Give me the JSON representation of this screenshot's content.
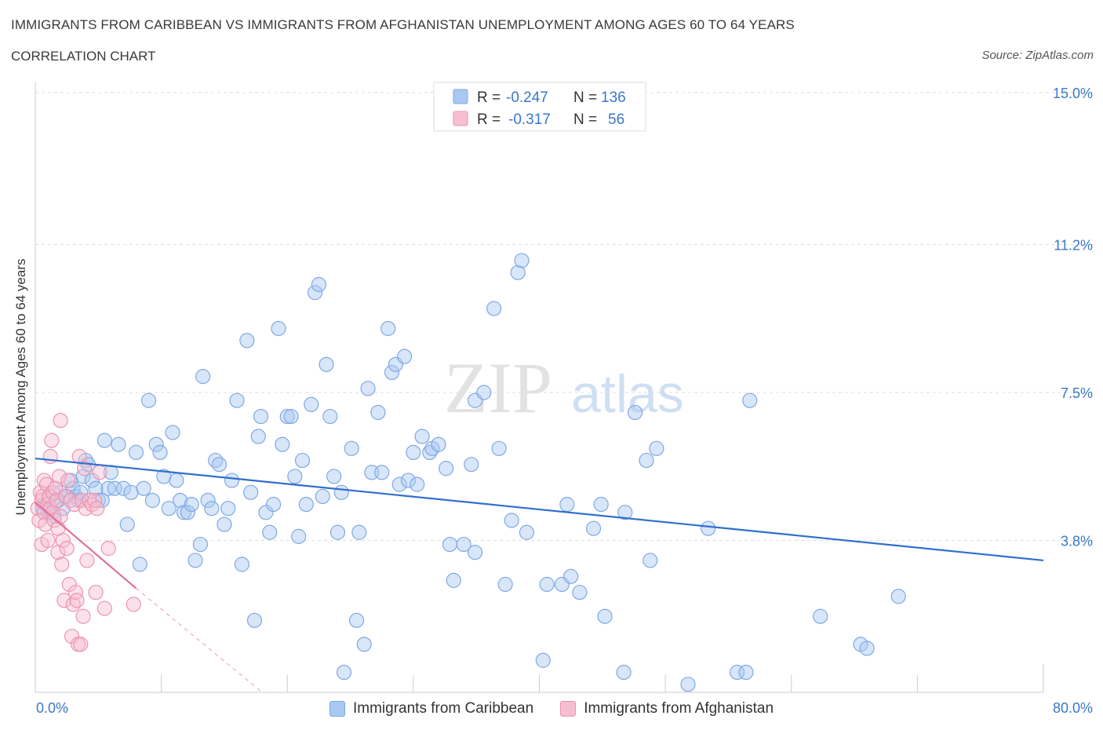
{
  "title": "IMMIGRANTS FROM CARIBBEAN VS IMMIGRANTS FROM AFGHANISTAN UNEMPLOYMENT AMONG AGES 60 TO 64 YEARS",
  "subtitle": "CORRELATION CHART",
  "source": "Source: ZipAtlas.com",
  "watermark": {
    "zip": "ZIP",
    "atlas": "atlas"
  },
  "colors": {
    "blue_fill": "#a9c8f2",
    "blue_stroke": "#7fa9e3",
    "blue_line": "#2f6fcd",
    "pink_fill": "#f6bfd1",
    "pink_stroke": "#ec93b1",
    "pink_line": "#e0709a",
    "value_text": "#3a78c9",
    "grid": "#dcdcdc"
  },
  "legend_stats": [
    {
      "r_label": "R =",
      "r_value": "-0.247",
      "n_label": "N =",
      "n_value": "136"
    },
    {
      "r_label": "R =",
      "r_value": "-0.317",
      "n_label": "N =",
      "n_value": "56"
    }
  ],
  "chart_data": {
    "type": "scatter",
    "title": "IMMIGRANTS FROM CARIBBEAN VS IMMIGRANTS FROM AFGHANISTAN UNEMPLOYMENT AMONG AGES 60 TO 64 YEARS",
    "xlabel": "",
    "ylabel": "Unemployment Among Ages 60 to 64 years",
    "xlim": [
      0,
      80
    ],
    "ylim": [
      0,
      15
    ],
    "x_tick_labels": [
      "0.0%",
      "80.0%"
    ],
    "y_ticks": [
      3.8,
      7.5,
      11.2,
      15.0
    ],
    "y_tick_labels": [
      "3.8%",
      "7.5%",
      "11.2%",
      "15.0%"
    ],
    "grid": true,
    "legend": "bottom",
    "series": [
      {
        "name": "Immigrants from Caribbean",
        "color": "#a9c8f2",
        "points": [
          [
            0.6,
            4.6
          ],
          [
            0.8,
            4.7
          ],
          [
            1.0,
            4.5
          ],
          [
            1.2,
            4.9
          ],
          [
            1.5,
            4.4
          ],
          [
            1.8,
            4.8
          ],
          [
            2.0,
            5.0
          ],
          [
            2.2,
            4.6
          ],
          [
            2.5,
            4.9
          ],
          [
            2.8,
            5.3
          ],
          [
            3.0,
            5.1
          ],
          [
            3.2,
            4.9
          ],
          [
            3.4,
            4.8
          ],
          [
            3.6,
            5.0
          ],
          [
            3.8,
            5.4
          ],
          [
            4.0,
            5.8
          ],
          [
            4.2,
            5.7
          ],
          [
            4.5,
            5.3
          ],
          [
            4.8,
            5.1
          ],
          [
            5.0,
            4.8
          ],
          [
            5.3,
            4.8
          ],
          [
            5.5,
            6.3
          ],
          [
            5.8,
            5.1
          ],
          [
            6.0,
            5.5
          ],
          [
            6.3,
            5.1
          ],
          [
            6.6,
            6.2
          ],
          [
            7.0,
            5.1
          ],
          [
            7.3,
            4.2
          ],
          [
            7.6,
            5.0
          ],
          [
            8.0,
            6.0
          ],
          [
            8.3,
            3.2
          ],
          [
            8.6,
            5.1
          ],
          [
            9.0,
            7.3
          ],
          [
            9.3,
            4.8
          ],
          [
            9.6,
            6.2
          ],
          [
            9.9,
            6.0
          ],
          [
            10.2,
            5.4
          ],
          [
            10.6,
            4.6
          ],
          [
            10.9,
            6.5
          ],
          [
            11.2,
            5.3
          ],
          [
            11.5,
            4.8
          ],
          [
            11.8,
            4.5
          ],
          [
            12.1,
            4.5
          ],
          [
            12.4,
            4.7
          ],
          [
            12.7,
            3.3
          ],
          [
            13.1,
            3.7
          ],
          [
            13.3,
            7.9
          ],
          [
            13.7,
            4.8
          ],
          [
            14.0,
            4.6
          ],
          [
            14.3,
            5.8
          ],
          [
            14.6,
            5.7
          ],
          [
            15.0,
            4.2
          ],
          [
            15.3,
            4.6
          ],
          [
            15.6,
            5.3
          ],
          [
            16.0,
            7.3
          ],
          [
            16.4,
            3.2
          ],
          [
            16.8,
            8.8
          ],
          [
            17.1,
            5.0
          ],
          [
            17.4,
            1.8
          ],
          [
            17.7,
            6.4
          ],
          [
            17.9,
            6.9
          ],
          [
            18.3,
            4.5
          ],
          [
            18.6,
            4.0
          ],
          [
            18.9,
            4.7
          ],
          [
            19.3,
            9.1
          ],
          [
            19.6,
            6.2
          ],
          [
            20.0,
            6.9
          ],
          [
            20.3,
            6.9
          ],
          [
            20.6,
            5.4
          ],
          [
            20.9,
            3.9
          ],
          [
            21.2,
            5.8
          ],
          [
            21.5,
            4.7
          ],
          [
            21.9,
            7.2
          ],
          [
            22.2,
            10.0
          ],
          [
            22.5,
            10.2
          ],
          [
            22.8,
            4.9
          ],
          [
            23.1,
            8.2
          ],
          [
            23.4,
            6.9
          ],
          [
            23.7,
            5.4
          ],
          [
            24.0,
            4.0
          ],
          [
            24.3,
            5.0
          ],
          [
            24.5,
            0.5
          ],
          [
            25.1,
            6.1
          ],
          [
            25.5,
            1.8
          ],
          [
            25.7,
            4.0
          ],
          [
            26.1,
            1.2
          ],
          [
            26.4,
            7.6
          ],
          [
            26.7,
            5.5
          ],
          [
            27.2,
            7.0
          ],
          [
            27.5,
            5.5
          ],
          [
            28.0,
            9.1
          ],
          [
            28.3,
            8.0
          ],
          [
            28.6,
            8.2
          ],
          [
            28.9,
            5.2
          ],
          [
            29.3,
            8.4
          ],
          [
            29.6,
            5.3
          ],
          [
            30.0,
            6.0
          ],
          [
            30.3,
            5.2
          ],
          [
            30.7,
            6.4
          ],
          [
            31.3,
            6.0
          ],
          [
            31.5,
            6.1
          ],
          [
            32.0,
            6.2
          ],
          [
            32.6,
            5.6
          ],
          [
            32.9,
            3.7
          ],
          [
            33.2,
            2.8
          ],
          [
            34.0,
            3.7
          ],
          [
            34.6,
            5.7
          ],
          [
            34.9,
            7.3
          ],
          [
            34.9,
            3.5
          ],
          [
            35.6,
            7.5
          ],
          [
            36.4,
            9.6
          ],
          [
            36.8,
            6.1
          ],
          [
            37.3,
            2.7
          ],
          [
            37.8,
            4.3
          ],
          [
            38.3,
            10.5
          ],
          [
            38.6,
            10.8
          ],
          [
            39.0,
            4.0
          ],
          [
            40.3,
            0.8
          ],
          [
            40.6,
            2.7
          ],
          [
            41.8,
            2.7
          ],
          [
            42.2,
            4.7
          ],
          [
            42.5,
            2.9
          ],
          [
            43.2,
            2.5
          ],
          [
            44.3,
            4.1
          ],
          [
            44.9,
            4.7
          ],
          [
            45.2,
            1.9
          ],
          [
            46.7,
            0.5
          ],
          [
            46.8,
            4.5
          ],
          [
            47.6,
            7.0
          ],
          [
            48.5,
            5.8
          ],
          [
            48.8,
            3.3
          ],
          [
            49.3,
            6.1
          ],
          [
            51.8,
            0.2
          ],
          [
            53.4,
            4.1
          ],
          [
            55.7,
            0.5
          ],
          [
            56.4,
            0.5
          ],
          [
            56.7,
            7.3
          ],
          [
            62.3,
            1.9
          ],
          [
            65.5,
            1.2
          ],
          [
            66.0,
            1.1
          ],
          [
            68.5,
            2.4
          ]
        ],
        "trend": {
          "x": [
            0,
            80
          ],
          "y": [
            5.85,
            3.3
          ]
        }
      },
      {
        "name": "Immigrants from Afghanistan",
        "color": "#f6bfd1",
        "points": [
          [
            0.2,
            4.6
          ],
          [
            0.3,
            4.3
          ],
          [
            0.4,
            5.0
          ],
          [
            0.5,
            4.8
          ],
          [
            0.5,
            3.7
          ],
          [
            0.6,
            4.9
          ],
          [
            0.7,
            5.3
          ],
          [
            0.7,
            4.5
          ],
          [
            0.8,
            4.2
          ],
          [
            0.9,
            5.2
          ],
          [
            1.0,
            4.7
          ],
          [
            1.0,
            3.8
          ],
          [
            1.1,
            4.9
          ],
          [
            1.2,
            5.9
          ],
          [
            1.2,
            4.6
          ],
          [
            1.3,
            6.3
          ],
          [
            1.4,
            5.0
          ],
          [
            1.4,
            4.5
          ],
          [
            1.5,
            4.3
          ],
          [
            1.6,
            5.1
          ],
          [
            1.7,
            4.8
          ],
          [
            1.8,
            3.5
          ],
          [
            1.8,
            4.1
          ],
          [
            1.9,
            5.4
          ],
          [
            2.0,
            6.8
          ],
          [
            2.0,
            4.4
          ],
          [
            2.1,
            3.2
          ],
          [
            2.2,
            3.8
          ],
          [
            2.3,
            2.3
          ],
          [
            2.4,
            4.9
          ],
          [
            2.5,
            3.6
          ],
          [
            2.6,
            5.3
          ],
          [
            2.7,
            2.7
          ],
          [
            2.8,
            4.8
          ],
          [
            2.9,
            1.4
          ],
          [
            3.0,
            2.2
          ],
          [
            3.1,
            4.7
          ],
          [
            3.2,
            2.5
          ],
          [
            3.3,
            2.3
          ],
          [
            3.4,
            1.2
          ],
          [
            3.5,
            5.9
          ],
          [
            3.6,
            1.2
          ],
          [
            3.7,
            4.8
          ],
          [
            3.8,
            1.9
          ],
          [
            3.9,
            5.6
          ],
          [
            4.0,
            4.6
          ],
          [
            4.1,
            3.3
          ],
          [
            4.3,
            4.8
          ],
          [
            4.5,
            4.7
          ],
          [
            4.7,
            4.8
          ],
          [
            4.8,
            2.5
          ],
          [
            4.9,
            4.6
          ],
          [
            5.1,
            5.5
          ],
          [
            5.5,
            2.1
          ],
          [
            5.8,
            3.6
          ],
          [
            7.8,
            2.2
          ]
        ],
        "trend": {
          "x": [
            0,
            8
          ],
          "y": [
            4.75,
            2.6
          ]
        },
        "trend_extended": {
          "x": [
            8,
            18
          ],
          "y": [
            2.6,
            0
          ]
        }
      }
    ]
  }
}
